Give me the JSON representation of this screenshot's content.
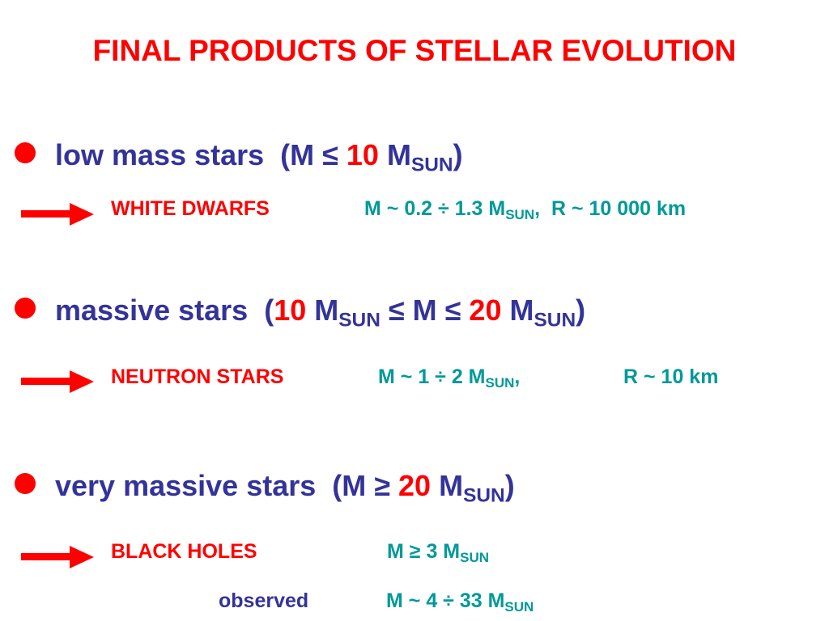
{
  "title": "FINAL PRODUCTS OF STELLAR EVOLUTION",
  "groups": [
    {
      "heading": [
        "low mass stars  (M ≤ ",
        "10",
        " M",
        "SUN",
        ")"
      ],
      "result": "WHITE DWARFS",
      "details": [
        [
          "M ~ 0.2 ÷ 1.3 M",
          "SUN",
          ",  R ~ 10 000 km"
        ]
      ]
    },
    {
      "heading": [
        "massive stars  (",
        "10",
        " M",
        "SUN",
        " ≤ M ≤ ",
        "20",
        " M",
        "SUN",
        ")"
      ],
      "result": "NEUTRON STARS",
      "details": [
        [
          "M ~ 1 ÷ 2 M",
          "SUN",
          ","
        ],
        [
          "R ~ 10 km"
        ]
      ]
    },
    {
      "heading": [
        "very massive stars  (M ≥ ",
        "20",
        " M",
        "SUN",
        ")"
      ],
      "result": "BLACK HOLES",
      "details": [
        [
          "M ≥ 3 M",
          "SUN"
        ]
      ],
      "observed": {
        "label": "observed",
        "details": [
          "M ~ 4 ÷ 33 M",
          "SUN"
        ]
      }
    }
  ]
}
